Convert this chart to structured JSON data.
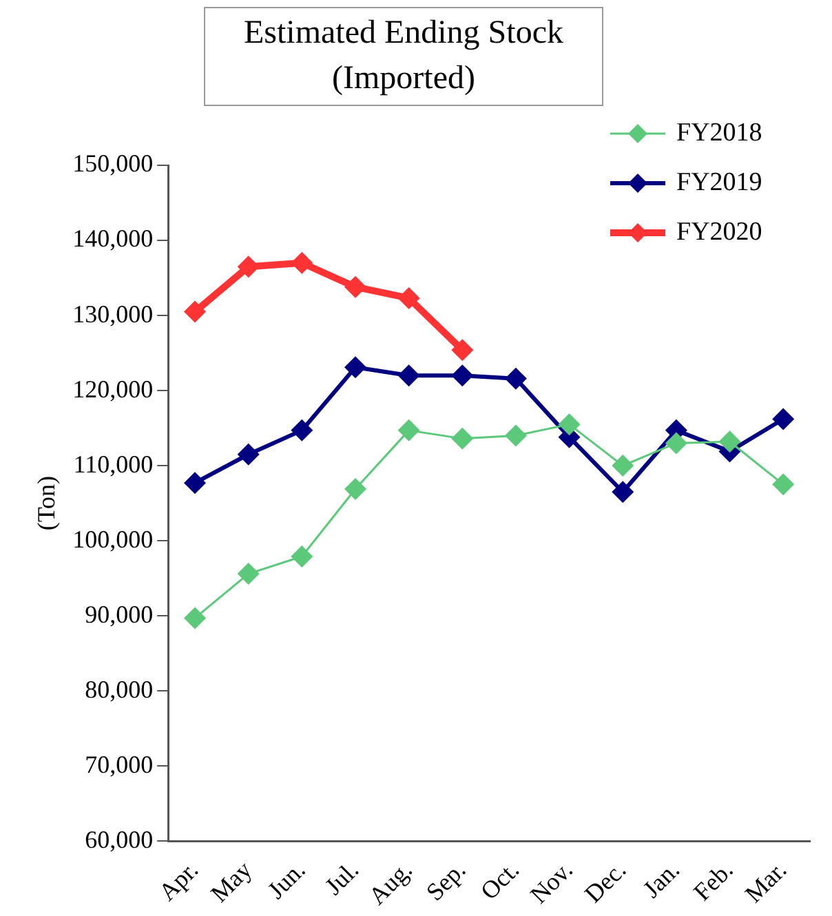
{
  "chart_data": {
    "type": "line",
    "title": "Estimated Ending Stock\n(Imported)",
    "ylabel": "(Ton)",
    "categories": [
      "Apr.",
      "May",
      "Jun.",
      "Jul.",
      "Aug.",
      "Sep.",
      "Oct.",
      "Nov.",
      "Dec.",
      "Jan.",
      "Feb.",
      "Mar."
    ],
    "series": [
      {
        "name": "FY2018",
        "color": "#5bc87a",
        "values": [
          89700,
          95600,
          97900,
          106900,
          114700,
          113600,
          114000,
          115500,
          110000,
          113000,
          113200,
          107500
        ]
      },
      {
        "name": "FY2019",
        "color": "#000080",
        "values": [
          107700,
          111500,
          114700,
          123100,
          122000,
          122000,
          121600,
          113800,
          106500,
          114700,
          111900,
          116200
        ]
      },
      {
        "name": "FY2020",
        "color": "#ff3333",
        "values": [
          130500,
          136500,
          137000,
          133800,
          132300,
          125400,
          null,
          null,
          null,
          null,
          null,
          null
        ]
      }
    ],
    "ylim": [
      60000,
      150000
    ],
    "yticks": [
      {
        "value": 60000,
        "label": "60,000"
      },
      {
        "value": 70000,
        "label": "70,000"
      },
      {
        "value": 80000,
        "label": "80,000"
      },
      {
        "value": 90000,
        "label": "90,000"
      },
      {
        "value": 100000,
        "label": "100,000"
      },
      {
        "value": 110000,
        "label": "110,000"
      },
      {
        "value": 120000,
        "label": "120,000"
      },
      {
        "value": 130000,
        "label": "130,000"
      },
      {
        "value": 140000,
        "label": "140,000"
      },
      {
        "value": 150000,
        "label": "150,000"
      }
    ],
    "grid": false,
    "legend": "top right",
    "marker": "diamond",
    "line_style": "solid"
  }
}
